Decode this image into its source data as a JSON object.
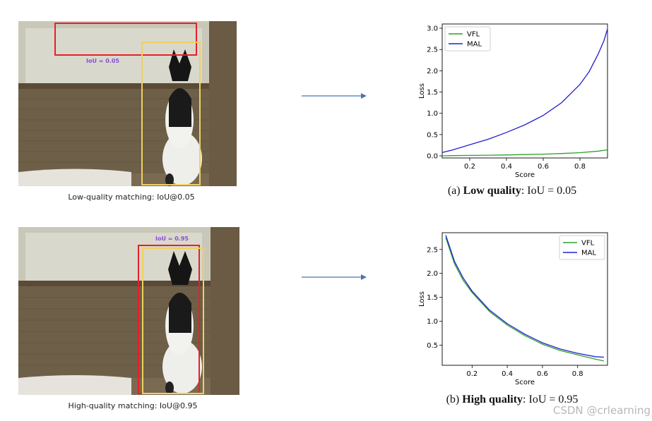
{
  "panels": [
    {
      "photo_caption": "Low-quality matching: IoU@0.05",
      "iou_label": "IoU    = 0.05",
      "caption_prefix": "(a) ",
      "caption_bold": "Low quality",
      "caption_suffix": ": IoU = 0.05"
    },
    {
      "photo_caption": "High-quality matching: IoU@0.95",
      "iou_label": "IoU  = 0.95",
      "caption_prefix": "(b) ",
      "caption_bold": "High quality",
      "caption_suffix": ": IoU = 0.95"
    }
  ],
  "colors": {
    "vfl": "#2ca02c",
    "mal": "#2020d0",
    "pred_box": "#e8202a",
    "gt_box": "#f0d060",
    "arrow": "#4a74b4",
    "iou_text": "#8a4fd0"
  },
  "watermark": "CSDN @crlearning",
  "chart_data": [
    {
      "type": "line",
      "xlabel": "Score",
      "ylabel": "Loss",
      "xlim": [
        0.05,
        0.95
      ],
      "ylim": [
        -0.05,
        3.1
      ],
      "xticks": [
        "0.2",
        "0.4",
        "0.6",
        "0.8"
      ],
      "xtick_values": [
        0.2,
        0.4,
        0.6,
        0.8
      ],
      "yticks": [
        "0.0",
        "0.5",
        "1.0",
        "1.5",
        "2.0",
        "2.5",
        "3.0"
      ],
      "ytick_values": [
        0.0,
        0.5,
        1.0,
        1.5,
        2.0,
        2.5,
        3.0
      ],
      "legend_position": "top-left",
      "grid": false,
      "series": [
        {
          "name": "VFL",
          "x": [
            0.05,
            0.1,
            0.2,
            0.3,
            0.4,
            0.5,
            0.6,
            0.7,
            0.8,
            0.9,
            0.95
          ],
          "y": [
            0.0,
            0.005,
            0.01,
            0.015,
            0.022,
            0.03,
            0.04,
            0.055,
            0.075,
            0.11,
            0.14
          ]
        },
        {
          "name": "MAL",
          "x": [
            0.05,
            0.1,
            0.2,
            0.3,
            0.4,
            0.5,
            0.6,
            0.7,
            0.8,
            0.85,
            0.9,
            0.93,
            0.95
          ],
          "y": [
            0.08,
            0.13,
            0.26,
            0.39,
            0.55,
            0.73,
            0.95,
            1.25,
            1.68,
            1.98,
            2.4,
            2.7,
            2.98
          ]
        }
      ]
    },
    {
      "type": "line",
      "xlabel": "Score",
      "ylabel": "Loss",
      "xlim": [
        0.03,
        0.97
      ],
      "ylim": [
        0.08,
        2.85
      ],
      "xticks": [
        "0.2",
        "0.4",
        "0.6",
        "0.8"
      ],
      "xtick_values": [
        0.2,
        0.4,
        0.6,
        0.8
      ],
      "yticks": [
        "0.5",
        "1.0",
        "1.5",
        "2.0",
        "2.5"
      ],
      "ytick_values": [
        0.5,
        1.0,
        1.5,
        2.0,
        2.5
      ],
      "legend_position": "top-right",
      "grid": false,
      "series": [
        {
          "name": "VFL",
          "x": [
            0.05,
            0.1,
            0.15,
            0.2,
            0.3,
            0.4,
            0.5,
            0.6,
            0.7,
            0.8,
            0.9,
            0.95
          ],
          "y": [
            2.75,
            2.2,
            1.85,
            1.6,
            1.2,
            0.92,
            0.7,
            0.52,
            0.39,
            0.3,
            0.21,
            0.17
          ]
        },
        {
          "name": "MAL",
          "x": [
            0.05,
            0.1,
            0.15,
            0.2,
            0.3,
            0.4,
            0.5,
            0.6,
            0.7,
            0.8,
            0.9,
            0.95
          ],
          "y": [
            2.8,
            2.25,
            1.9,
            1.63,
            1.23,
            0.95,
            0.73,
            0.55,
            0.42,
            0.33,
            0.26,
            0.25
          ]
        }
      ]
    }
  ]
}
